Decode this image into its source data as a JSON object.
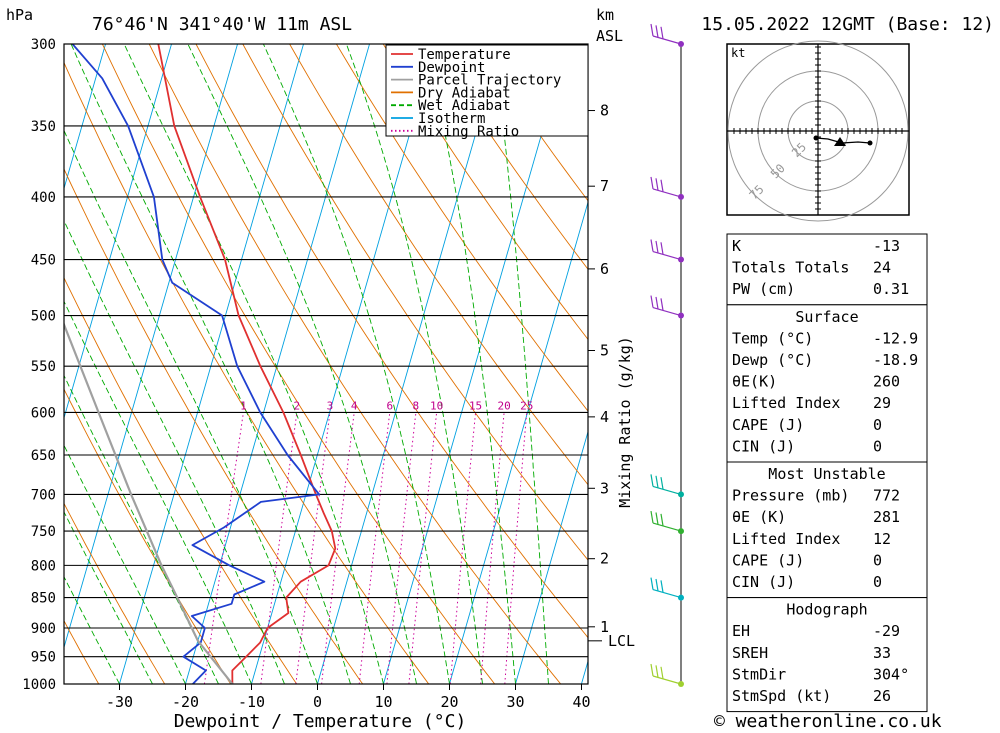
{
  "header": {
    "location": "76°46'N 341°40'W 11m ASL",
    "datetime": "15.05.2022 12GMT (Base: 12)",
    "pressure_unit": "hPa",
    "height_unit_line1": "km",
    "height_unit_line2": "ASL"
  },
  "footer": {
    "credit": "© weatheronline.co.uk"
  },
  "chart_data": {
    "type": "line",
    "subtype": "skew-T log-P diagram",
    "xlabel": "Dewpoint / Temperature (°C)",
    "ylabel": "hPa",
    "xlim": [
      -40,
      40
    ],
    "x_ticks": [
      -30,
      -20,
      -10,
      0,
      10,
      20,
      30,
      40
    ],
    "x_tick_labels": [
      "-30",
      "-20",
      "-10",
      "0",
      "10",
      "20",
      "30",
      "40"
    ],
    "ylim": [
      1000,
      300
    ],
    "y_scale": "log",
    "y_ticks": [
      300,
      350,
      400,
      450,
      500,
      550,
      600,
      650,
      700,
      750,
      800,
      850,
      900,
      950,
      1000
    ],
    "y_tick_labels": [
      "300",
      "350",
      "400",
      "450",
      "500",
      "550",
      "600",
      "650",
      "700",
      "750",
      "800",
      "850",
      "900",
      "950",
      "1000"
    ],
    "height_axis_label": "km ASL",
    "height_ticks": [
      {
        "label": "8",
        "pressure": 340
      },
      {
        "label": "7",
        "pressure": 392
      },
      {
        "label": "6",
        "pressure": 458
      },
      {
        "label": "5",
        "pressure": 534
      },
      {
        "label": "4",
        "pressure": 605
      },
      {
        "label": "3",
        "pressure": 692
      },
      {
        "label": "2",
        "pressure": 790
      },
      {
        "label": "1",
        "pressure": 898
      },
      {
        "label": "LCL",
        "pressure": 922
      }
    ],
    "mixing_ratio_axis_label": "Mixing Ratio (g/kg)",
    "mixing_ratio_labels": [
      "1",
      "2",
      "3",
      "4",
      "6",
      "8",
      "10",
      "15",
      "20",
      "25"
    ],
    "mixing_ratio_values": [
      1,
      2,
      3,
      4,
      6,
      8,
      10,
      15,
      20,
      25
    ],
    "legend": {
      "placement": "top-right",
      "entries": [
        {
          "label": "Temperature",
          "color": "#e03030",
          "style": "solid"
        },
        {
          "label": "Dewpoint",
          "color": "#2040d0",
          "style": "solid"
        },
        {
          "label": "Parcel Trajectory",
          "color": "#a0a0a0",
          "style": "solid"
        },
        {
          "label": "Dry Adiabat",
          "color": "#e07000",
          "style": "solid"
        },
        {
          "label": "Wet Adiabat",
          "color": "#00aa00",
          "style": "dashed"
        },
        {
          "label": "Isotherm",
          "color": "#00a0e0",
          "style": "solid"
        },
        {
          "label": "Mixing Ratio",
          "color": "#cc0099",
          "style": "dotted"
        }
      ]
    },
    "series": [
      {
        "name": "Temperature",
        "color": "#e03030",
        "points": [
          {
            "p": 1000,
            "t": -12.9
          },
          {
            "p": 975,
            "t": -13.5
          },
          {
            "p": 950,
            "t": -12.0
          },
          {
            "p": 925,
            "t": -10.5
          },
          {
            "p": 900,
            "t": -10.0
          },
          {
            "p": 875,
            "t": -7.5
          },
          {
            "p": 850,
            "t": -8.5
          },
          {
            "p": 825,
            "t": -7.0
          },
          {
            "p": 800,
            "t": -3.5
          },
          {
            "p": 775,
            "t": -3.2
          },
          {
            "p": 750,
            "t": -4.5
          },
          {
            "p": 725,
            "t": -6.5
          },
          {
            "p": 700,
            "t": -8.5
          },
          {
            "p": 650,
            "t": -12.5
          },
          {
            "p": 600,
            "t": -17.0
          },
          {
            "p": 550,
            "t": -22.5
          },
          {
            "p": 500,
            "t": -28.0
          },
          {
            "p": 450,
            "t": -32.5
          },
          {
            "p": 400,
            "t": -39.0
          },
          {
            "p": 350,
            "t": -46.0
          },
          {
            "p": 300,
            "t": -52.0
          }
        ]
      },
      {
        "name": "Dewpoint",
        "color": "#2040d0",
        "points": [
          {
            "p": 1000,
            "t": -18.9
          },
          {
            "p": 975,
            "t": -17.5
          },
          {
            "p": 950,
            "t": -21.5
          },
          {
            "p": 925,
            "t": -19.5
          },
          {
            "p": 900,
            "t": -19.5
          },
          {
            "p": 880,
            "t": -22.0
          },
          {
            "p": 860,
            "t": -16.5
          },
          {
            "p": 845,
            "t": -16.5
          },
          {
            "p": 825,
            "t": -12.5
          },
          {
            "p": 800,
            "t": -18.5
          },
          {
            "p": 770,
            "t": -25.0
          },
          {
            "p": 745,
            "t": -21.0
          },
          {
            "p": 710,
            "t": -16.5
          },
          {
            "p": 700,
            "t": -8.0
          },
          {
            "p": 650,
            "t": -14.5
          },
          {
            "p": 600,
            "t": -20.5
          },
          {
            "p": 550,
            "t": -26.0
          },
          {
            "p": 500,
            "t": -30.5
          },
          {
            "p": 470,
            "t": -39.5
          },
          {
            "p": 450,
            "t": -42.0
          },
          {
            "p": 400,
            "t": -46.0
          },
          {
            "p": 350,
            "t": -53.0
          },
          {
            "p": 320,
            "t": -59.0
          },
          {
            "p": 300,
            "t": -65.0
          }
        ]
      },
      {
        "name": "Parcel Trajectory",
        "color": "#a0a0a0",
        "points": [
          {
            "p": 1000,
            "t": -12.9
          },
          {
            "p": 922,
            "t": -20.0
          },
          {
            "p": 850,
            "t": -25.0
          },
          {
            "p": 800,
            "t": -28.8
          },
          {
            "p": 700,
            "t": -36.5
          },
          {
            "p": 600,
            "t": -45.0
          },
          {
            "p": 500,
            "t": -55.0
          },
          {
            "p": 470,
            "t": -58.0
          }
        ]
      }
    ],
    "wind_barbs": [
      {
        "p": 300,
        "color": "#9030c0"
      },
      {
        "p": 400,
        "color": "#9030c0"
      },
      {
        "p": 450,
        "color": "#9030c0"
      },
      {
        "p": 500,
        "color": "#9030c0"
      },
      {
        "p": 700,
        "color": "#00b0a0"
      },
      {
        "p": 750,
        "color": "#30b030"
      },
      {
        "p": 850,
        "color": "#00b0c0"
      },
      {
        "p": 1000,
        "color": "#a0d030"
      }
    ],
    "hodograph": {
      "unit_label": "kt",
      "ring_labels": [
        "25",
        "50",
        "75"
      ]
    }
  },
  "indices": {
    "general": [
      {
        "label": "K",
        "value": "-13"
      },
      {
        "label": "Totals Totals",
        "value": "24"
      },
      {
        "label": "PW (cm)",
        "value": "0.31"
      }
    ],
    "surface": {
      "title": "Surface",
      "rows": [
        {
          "label": "Temp (°C)",
          "value": "-12.9"
        },
        {
          "label": "Dewp (°C)",
          "value": "-18.9"
        },
        {
          "label": "θE(K)",
          "value": "260"
        },
        {
          "label": "Lifted Index",
          "value": "29"
        },
        {
          "label": "CAPE (J)",
          "value": "0"
        },
        {
          "label": "CIN (J)",
          "value": "0"
        }
      ]
    },
    "most_unstable": {
      "title": "Most Unstable",
      "rows": [
        {
          "label": "Pressure (mb)",
          "value": "772"
        },
        {
          "label": "θE (K)",
          "value": "281"
        },
        {
          "label": "Lifted Index",
          "value": "12"
        },
        {
          "label": "CAPE (J)",
          "value": "0"
        },
        {
          "label": "CIN (J)",
          "value": "0"
        }
      ]
    },
    "hodograph": {
      "title": "Hodograph",
      "rows": [
        {
          "label": "EH",
          "value": "-29"
        },
        {
          "label": "SREH",
          "value": "33"
        },
        {
          "label": "StmDir",
          "value": "304°"
        },
        {
          "label": "StmSpd (kt)",
          "value": "26"
        }
      ]
    }
  }
}
